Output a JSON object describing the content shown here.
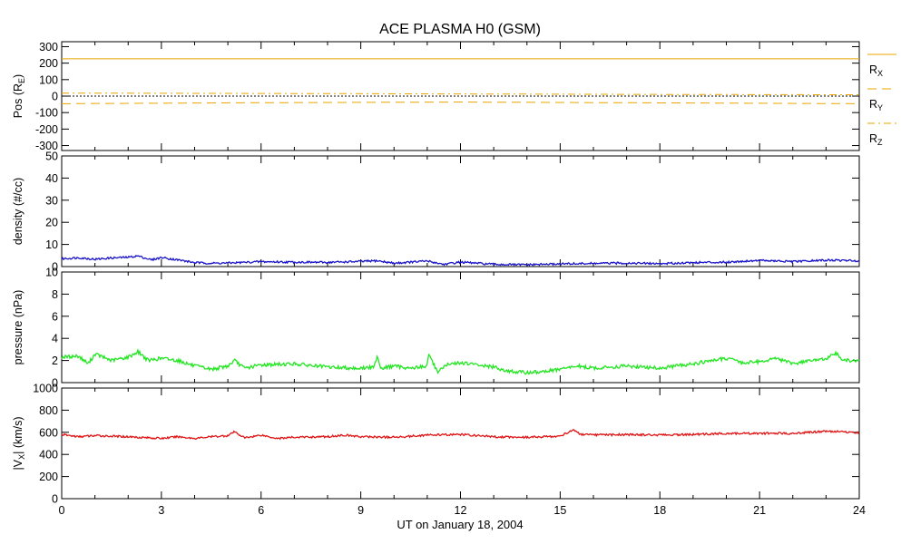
{
  "chart_data": {
    "type": "line",
    "title": "ACE PLASMA H0 (GSM)",
    "xlabel": "UT on January 18, 2004",
    "xlim": [
      0,
      24
    ],
    "xticks": [
      0,
      3,
      6,
      9,
      12,
      15,
      18,
      21,
      24
    ],
    "xtick_labels": [
      "0",
      "3",
      "6",
      "9",
      "12",
      "15",
      "18",
      "21",
      "24"
    ],
    "panels": [
      {
        "id": "pos",
        "ylabel_main": "Pos (R",
        "ylabel_sub": "E",
        "ylabel_end": ")",
        "ylim": [
          -330,
          330
        ],
        "yticks": [
          -300,
          -200,
          -100,
          0,
          100,
          200,
          300
        ],
        "ytick_labels": [
          "-300",
          "-200",
          "-100",
          "0",
          "100",
          "200",
          "300"
        ],
        "zero_line": true,
        "series": [
          {
            "name": "R",
            "sub": "X",
            "color": "#e8a400",
            "dash": "solid",
            "x": [
              0,
              24
            ],
            "y": [
              226,
              226
            ]
          },
          {
            "name": "R",
            "sub": "Y",
            "color": "#e8a400",
            "dash": "dashed",
            "x": [
              0,
              6,
              12,
              18,
              24
            ],
            "y": [
              -46,
              -40,
              -36,
              -41,
              -46
            ]
          },
          {
            "name": "R",
            "sub": "Z",
            "color": "#e8a400",
            "dash": "dashdot",
            "x": [
              0,
              6,
              12,
              18,
              24
            ],
            "y": [
              18,
              16,
              13,
              10,
              8
            ]
          }
        ]
      },
      {
        "id": "density",
        "ylabel_main": "density (#/cc)",
        "ylim": [
          0,
          50
        ],
        "yticks": [
          0,
          10,
          20,
          30,
          40,
          50
        ],
        "ytick_labels": [
          "0",
          "10",
          "20",
          "30",
          "40",
          "50"
        ],
        "series": [
          {
            "color": "#1a14c8",
            "x": [
              0,
              0.5,
              1,
              1.5,
              2,
              2.3,
              2.7,
              3,
              3.5,
              4,
              4.5,
              5,
              6,
              7,
              8,
              9,
              9.5,
              10,
              11,
              11.5,
              12,
              13,
              14,
              15,
              16,
              17,
              18,
              19,
              20,
              21,
              22,
              23,
              24
            ],
            "y": [
              3.5,
              4.0,
              3.3,
              3.9,
              4.2,
              4.8,
              3.0,
              4.1,
              3.0,
              1.8,
              1.5,
              1.6,
              2.2,
              2.0,
              1.9,
              2.3,
              2.6,
              1.5,
              2.5,
              1.0,
              2.0,
              1.0,
              0.8,
              1.2,
              1.4,
              1.6,
              1.3,
              1.8,
              2.0,
              2.8,
              2.2,
              2.9,
              2.6
            ]
          }
        ]
      },
      {
        "id": "pressure",
        "ylabel_main": "pressure (nPa)",
        "ylim": [
          0,
          10
        ],
        "yticks": [
          0,
          2,
          4,
          6,
          8,
          10
        ],
        "ytick_labels": [
          "0",
          "2",
          "4",
          "6",
          "8",
          "10"
        ],
        "series": [
          {
            "color": "#22e622",
            "x": [
              0,
              0.5,
              0.8,
              1,
              1.5,
              2,
              2.3,
              2.6,
              3,
              3.5,
              4,
              4.5,
              5,
              5.2,
              5.5,
              6,
              7,
              8,
              9,
              9.4,
              9.5,
              9.6,
              10,
              10.5,
              11,
              11.05,
              11.3,
              11.6,
              12,
              12.5,
              13,
              13.5,
              14,
              14.5,
              15,
              15.5,
              16,
              17,
              18,
              19,
              20,
              20.5,
              21,
              21.5,
              22,
              22.5,
              23,
              23.3,
              23.5,
              24
            ],
            "y": [
              2.3,
              2.4,
              1.7,
              2.6,
              2.0,
              2.3,
              2.8,
              2.0,
              2.2,
              2.0,
              1.5,
              1.2,
              1.5,
              2.0,
              1.3,
              1.6,
              1.7,
              1.4,
              1.3,
              1.4,
              2.5,
              1.3,
              1.5,
              1.3,
              1.5,
              2.6,
              1.0,
              1.6,
              1.8,
              1.6,
              1.4,
              1.0,
              0.9,
              1.0,
              1.2,
              1.5,
              1.3,
              1.5,
              1.3,
              1.7,
              2.2,
              1.8,
              1.9,
              2.2,
              1.7,
              2.0,
              2.1,
              2.7,
              2.0,
              2.0
            ]
          }
        ]
      },
      {
        "id": "vx",
        "ylabel_main": "|V",
        "ylabel_sub": "X",
        "ylabel_end": "| (km/s)",
        "ylim": [
          0,
          1000
        ],
        "yticks": [
          0,
          200,
          400,
          600,
          800,
          1000
        ],
        "ytick_labels": [
          "0",
          "200",
          "400",
          "600",
          "800",
          "1000"
        ],
        "series": [
          {
            "color": "#e01414",
            "x": [
              0,
              0.5,
              1,
              1.5,
              2,
              3,
              3.5,
              4,
              4.5,
              5,
              5.2,
              5.5,
              6,
              6.5,
              7,
              8,
              8.5,
              9,
              10,
              11,
              12,
              13,
              14,
              15,
              15.4,
              15.6,
              16,
              17,
              18,
              19,
              20,
              21,
              22,
              23,
              23.5,
              24
            ],
            "y": [
              580,
              560,
              570,
              565,
              560,
              545,
              560,
              545,
              560,
              570,
              605,
              550,
              575,
              545,
              555,
              560,
              575,
              560,
              555,
              575,
              580,
              560,
              555,
              565,
              625,
              580,
              575,
              580,
              575,
              580,
              590,
              590,
              590,
              610,
              605,
              595
            ]
          }
        ]
      }
    ]
  }
}
